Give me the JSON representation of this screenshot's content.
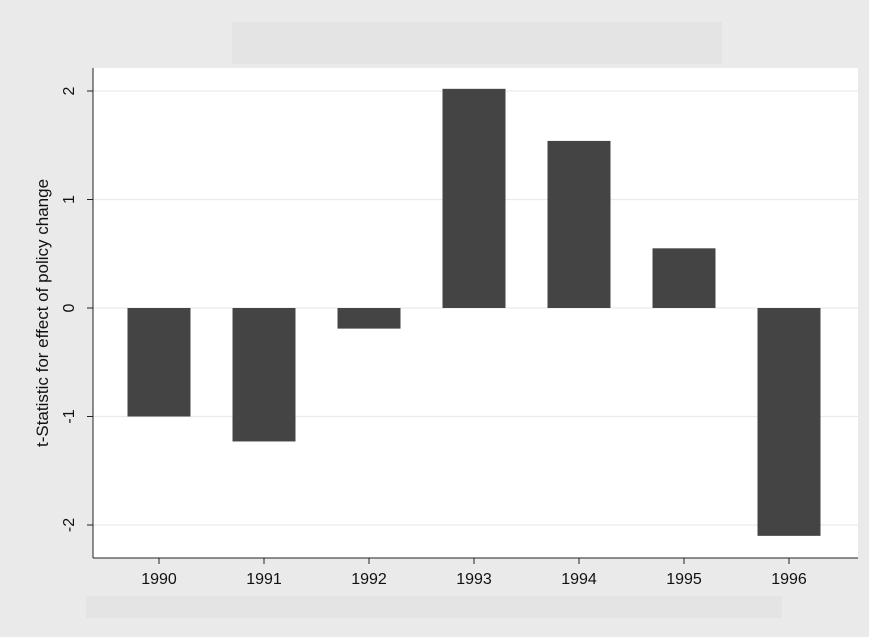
{
  "chart_data": {
    "type": "bar",
    "title": "",
    "xlabel": "",
    "ylabel": "t-Statistic for effect of policy change",
    "categories": [
      "1990",
      "1991",
      "1992",
      "1993",
      "1994",
      "1995",
      "1996"
    ],
    "values": [
      -1.0,
      -1.23,
      -0.19,
      2.02,
      1.54,
      0.55,
      -2.1
    ],
    "y_ticks": [
      "-2",
      "-1",
      "0",
      "1",
      "2"
    ],
    "ylim": [
      -2.3,
      2.2
    ],
    "grid": "horizontal",
    "bar_color": "#444444",
    "background_color": "#eaeaea",
    "plot_background": "#ffffff"
  }
}
